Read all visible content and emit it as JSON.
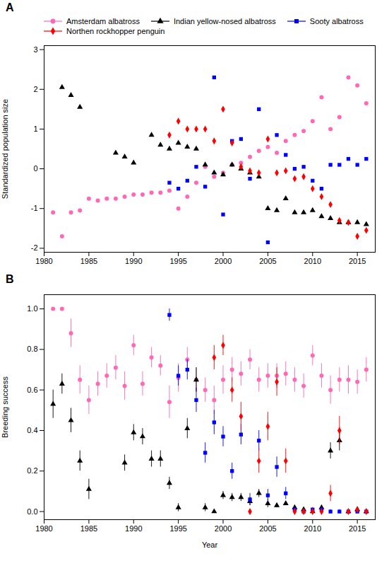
{
  "chart_data": [
    {
      "type": "line",
      "title": "A",
      "ylabel": "Standardized population size",
      "xlim": [
        1980,
        2017
      ],
      "xticks": [
        1980,
        1985,
        1990,
        1995,
        2000,
        2005,
        2010,
        2015
      ],
      "ylim": [
        -2.1,
        3.1
      ],
      "yticks": [
        -2,
        -1,
        0,
        1,
        2,
        3
      ],
      "legend": "upper left",
      "series": [
        {
          "name": "Amsterdam albatross",
          "color": "#FF69B4",
          "marker": "circle",
          "x": [
            1981,
            1982,
            1983,
            1984,
            1985,
            1986,
            1987,
            1988,
            1989,
            1990,
            1991,
            1992,
            1993,
            1994,
            1995,
            1996,
            1997,
            1998,
            1999,
            2000,
            2001,
            2002,
            2003,
            2004,
            2005,
            2006,
            2007,
            2008,
            2009,
            2010,
            2011,
            2012,
            2013,
            2014,
            2015,
            2016
          ],
          "values": [
            -1.1,
            -1.7,
            -1.1,
            -1.05,
            -0.75,
            -0.8,
            -0.75,
            -0.75,
            -0.7,
            -0.65,
            -0.65,
            -0.6,
            -0.6,
            -0.55,
            -1.0,
            -0.7,
            -0.35,
            0.05,
            -0.2,
            -0.1,
            0.1,
            0.15,
            0.3,
            0.45,
            0.55,
            0.4,
            0.7,
            0.85,
            0.95,
            1.2,
            1.8,
            1.0,
            1.3,
            2.3,
            2.1,
            1.65
          ]
        },
        {
          "name": "Indian yellow-nosed albatross",
          "color": "#000000",
          "marker": "triangle",
          "x": [
            1982,
            1983,
            1984,
            1985,
            1986,
            1987,
            1988,
            1989,
            1990,
            1991,
            1992,
            1993,
            1994,
            1995,
            1996,
            1997,
            1998,
            1999,
            2000,
            2001,
            2002,
            2003,
            2004,
            2005,
            2006,
            2007,
            2008,
            2009,
            2010,
            2011,
            2012,
            2013,
            2014,
            2015,
            2016
          ],
          "values": [
            2.05,
            1.85,
            1.55,
            null,
            null,
            null,
            0.4,
            0.3,
            0.15,
            null,
            0.85,
            0.6,
            0.5,
            0.65,
            0.55,
            0.5,
            0.1,
            -0.1,
            -0.15,
            0.1,
            0.0,
            -0.1,
            -0.2,
            -1.0,
            -1.05,
            -0.75,
            -1.1,
            -1.1,
            -1.05,
            -1.2,
            -1.25,
            -1.35,
            -1.35,
            -1.35,
            -1.4
          ]
        },
        {
          "name": "Sooty albatross",
          "color": "#0000FF",
          "marker": "square",
          "x": [
            1994,
            1995,
            1996,
            1997,
            1998,
            1999,
            2000,
            2001,
            2002,
            2003,
            2004,
            2005,
            2006,
            2007,
            2008,
            2009,
            2010,
            2011,
            2012,
            2013,
            2014,
            2015,
            2016
          ],
          "values": [
            -0.35,
            -0.5,
            -0.3,
            0.05,
            -0.45,
            2.3,
            -1.15,
            0.7,
            0.75,
            -0.25,
            1.5,
            -1.85,
            0.85,
            0.35,
            0.0,
            0.05,
            -0.3,
            -0.5,
            0.1,
            0.1,
            0.25,
            0.1,
            0.25
          ]
        },
        {
          "name": "Northen rockhopper penguin",
          "color": "#FF0000",
          "marker": "diamond",
          "x": [
            1994,
            1995,
            1996,
            1997,
            1998,
            1999,
            2000,
            2001,
            2002,
            2003,
            2004,
            2005,
            2006,
            2007,
            2008,
            2009,
            2010,
            2011,
            2012,
            2013,
            2014,
            2015,
            2016
          ],
          "values": [
            0.85,
            1.2,
            1.0,
            1.0,
            1.0,
            0.7,
            1.5,
            0.65,
            0.05,
            -0.05,
            -0.1,
            0.75,
            -0.1,
            -0.05,
            -0.25,
            -0.2,
            -0.5,
            -0.7,
            -0.9,
            -1.3,
            -1.35,
            -1.7,
            -1.55
          ]
        }
      ]
    },
    {
      "type": "line",
      "title": "B",
      "xlabel": "Year",
      "ylabel": "Breeding success",
      "xlim": [
        1980,
        2017
      ],
      "xticks": [
        1980,
        1985,
        1990,
        1995,
        2000,
        2005,
        2010,
        2015
      ],
      "ylim": [
        -0.04,
        1.07
      ],
      "yticks": [
        {
          "value": 0,
          "label": "0.0"
        },
        0.2,
        0.4,
        0.6,
        0.8,
        {
          "value": 1,
          "label": "1.0"
        }
      ],
      "series": [
        {
          "name": "Amsterdam albatross",
          "color": "#FF69B4",
          "marker": "circle",
          "x": [
            1981,
            1982,
            1983,
            1984,
            1985,
            1986,
            1987,
            1988,
            1989,
            1990,
            1991,
            1992,
            1993,
            1994,
            1995,
            1996,
            1997,
            1998,
            1999,
            2000,
            2001,
            2002,
            2003,
            2004,
            2005,
            2006,
            2007,
            2008,
            2009,
            2010,
            2011,
            2012,
            2013,
            2014,
            2015,
            2016
          ],
          "values": [
            1.0,
            1.0,
            0.88,
            0.65,
            0.55,
            0.63,
            0.67,
            0.71,
            0.62,
            0.82,
            0.63,
            0.76,
            0.72,
            0.54,
            0.66,
            0.75,
            0.65,
            0.6,
            0.55,
            0.65,
            0.7,
            0.68,
            0.75,
            0.65,
            0.67,
            0.67,
            0.68,
            0.65,
            0.62,
            0.77,
            0.67,
            0.6,
            0.65,
            0.65,
            0.64,
            0.7
          ],
          "yerr_lo": [
            0.0,
            0.0,
            0.07,
            0.07,
            0.07,
            0.06,
            0.06,
            0.06,
            0.07,
            0.05,
            0.06,
            0.05,
            0.05,
            0.08,
            0.07,
            0.06,
            0.06,
            0.06,
            0.07,
            0.07,
            0.06,
            0.06,
            0.05,
            0.06,
            0.06,
            0.06,
            0.06,
            0.06,
            0.06,
            0.05,
            0.06,
            0.07,
            0.06,
            0.07,
            0.06,
            0.06
          ],
          "yerr_hi": [
            0.0,
            0.0,
            0.07,
            0.07,
            0.07,
            0.06,
            0.06,
            0.06,
            0.07,
            0.05,
            0.06,
            0.05,
            0.05,
            0.08,
            0.07,
            0.06,
            0.06,
            0.06,
            0.07,
            0.07,
            0.06,
            0.06,
            0.05,
            0.06,
            0.06,
            0.06,
            0.06,
            0.06,
            0.06,
            0.05,
            0.06,
            0.07,
            0.06,
            0.07,
            0.06,
            0.06
          ]
        },
        {
          "name": "Indian yellow-nosed albatross",
          "color": "#000000",
          "marker": "triangle",
          "x": [
            1981,
            1982,
            1983,
            1984,
            1985,
            1986,
            1987,
            1988,
            1989,
            1990,
            1991,
            1992,
            1993,
            1994,
            1995,
            1996,
            1997,
            1998,
            1999,
            2000,
            2001,
            2002,
            2003,
            2004,
            2005,
            2006,
            2007,
            2008,
            2009,
            2010,
            2011,
            2012,
            2013,
            2014,
            2015,
            2016
          ],
          "values": [
            0.53,
            0.63,
            0.45,
            0.25,
            0.11,
            null,
            null,
            null,
            0.24,
            0.39,
            0.37,
            0.26,
            0.26,
            0.14,
            0.02,
            0.41,
            0.65,
            0.02,
            0.0,
            0.08,
            0.07,
            0.07,
            0.05,
            0.09,
            0.04,
            0.03,
            0.04,
            0.02,
            0.01,
            0.0,
            0.02,
            0.3,
            0.35,
            0.0,
            0.01,
            0.0
          ],
          "yerr_lo": [
            0.07,
            0.05,
            0.06,
            0.05,
            0.05,
            null,
            null,
            null,
            0.04,
            0.04,
            0.04,
            0.04,
            0.04,
            0.03,
            0.02,
            0.05,
            0.06,
            0.02,
            0.0,
            0.02,
            0.02,
            0.02,
            0.02,
            0.02,
            0.02,
            0.01,
            0.01,
            0.01,
            0.01,
            0.0,
            0.01,
            0.04,
            0.05,
            0.0,
            0.01,
            0.0
          ],
          "yerr_hi": [
            0.07,
            0.05,
            0.06,
            0.05,
            0.05,
            null,
            null,
            null,
            0.04,
            0.04,
            0.04,
            0.04,
            0.04,
            0.03,
            0.02,
            0.05,
            0.06,
            0.02,
            0.01,
            0.02,
            0.02,
            0.02,
            0.02,
            0.02,
            0.02,
            0.01,
            0.01,
            0.01,
            0.01,
            0.01,
            0.01,
            0.04,
            0.05,
            0.01,
            0.01,
            0.01
          ]
        },
        {
          "name": "Sooty albatross",
          "color": "#0000FF",
          "marker": "square",
          "x": [
            1994,
            1995,
            1996,
            1997,
            1998,
            1999,
            2000,
            2001,
            2002,
            2003,
            2004,
            2005,
            2006,
            2007,
            2008,
            2009,
            2010,
            2011,
            2012,
            2013,
            2014,
            2015,
            2016
          ],
          "values": [
            0.97,
            0.67,
            0.7,
            0.55,
            0.29,
            0.44,
            0.37,
            0.2,
            0.38,
            0.06,
            0.35,
            0.08,
            0.22,
            0.09,
            0.01,
            0.0,
            0.01,
            0.01,
            0.0,
            0.0,
            0.0,
            0.0,
            0.0
          ],
          "yerr_lo": [
            0.03,
            0.05,
            0.05,
            0.06,
            0.05,
            0.06,
            0.05,
            0.04,
            0.05,
            0.03,
            0.05,
            0.03,
            0.05,
            0.03,
            0.01,
            0.0,
            0.01,
            0.01,
            0.0,
            0.0,
            0.0,
            0.0,
            0.0
          ],
          "yerr_hi": [
            0.03,
            0.05,
            0.05,
            0.06,
            0.05,
            0.06,
            0.05,
            0.04,
            0.05,
            0.03,
            0.05,
            0.03,
            0.05,
            0.03,
            0.01,
            0.01,
            0.01,
            0.01,
            0.01,
            0.01,
            0.01,
            0.01,
            0.01
          ]
        },
        {
          "name": "Northen rockhopper penguin",
          "color": "#FF0000",
          "marker": "diamond",
          "x": [
            1999,
            2000,
            2001,
            2002,
            2003,
            2004,
            2005,
            2006,
            2007,
            2008,
            2009,
            2010,
            2011,
            2012,
            2013,
            2014,
            2015,
            2016
          ],
          "values": [
            0.76,
            0.82,
            0.6,
            0.47,
            0.0,
            0.25,
            0.42,
            0.64,
            0.25,
            0.0,
            0.0,
            0.0,
            0.0,
            0.09,
            0.4,
            0.0,
            0.01,
            0.0
          ],
          "yerr_lo": [
            0.06,
            0.05,
            0.06,
            0.07,
            0.0,
            0.06,
            0.07,
            0.07,
            0.06,
            0.0,
            0.0,
            0.0,
            0.0,
            0.04,
            0.07,
            0.0,
            0.01,
            0.0
          ],
          "yerr_hi": [
            0.06,
            0.05,
            0.06,
            0.07,
            0.01,
            0.06,
            0.07,
            0.07,
            0.06,
            0.01,
            0.01,
            0.01,
            0.01,
            0.04,
            0.07,
            0.01,
            0.01,
            0.01
          ]
        }
      ]
    }
  ]
}
